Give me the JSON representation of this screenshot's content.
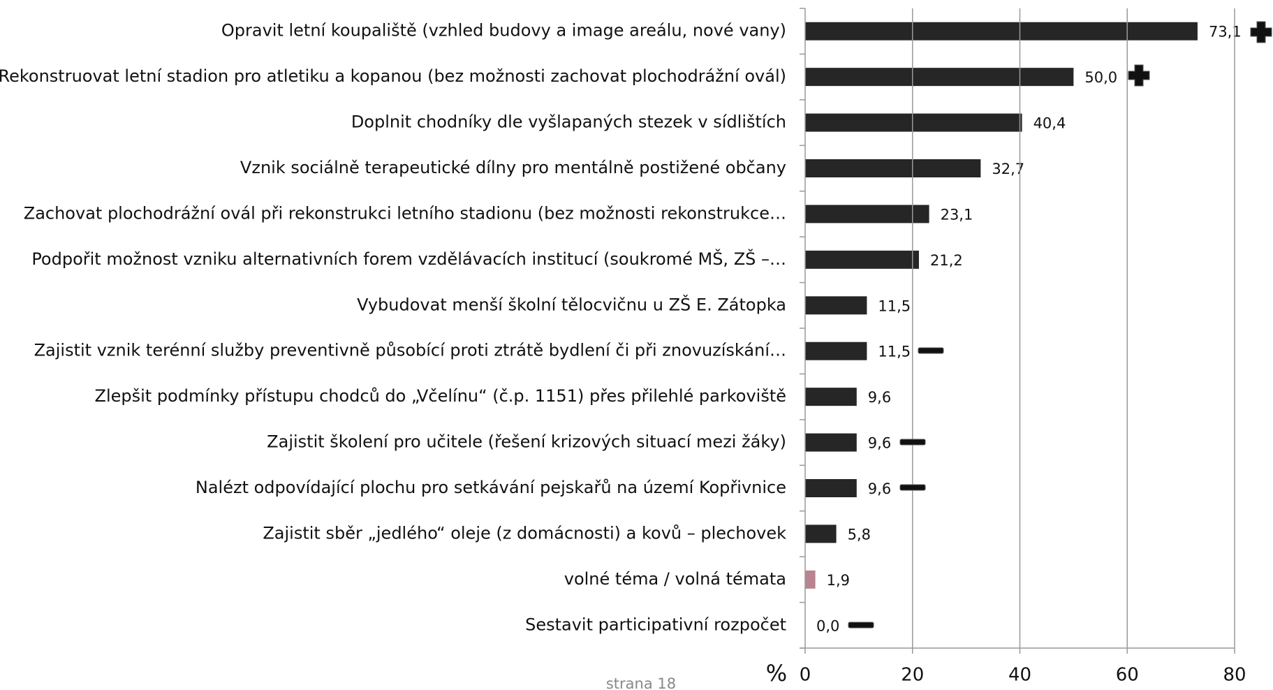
{
  "chart_data": {
    "type": "bar",
    "orientation": "horizontal",
    "categories": [
      "Opravit letní koupaliště (vzhled budovy a image areálu, nové vany)",
      "Rekonstruovat letní stadion pro atletiku a kopanou (bez možnosti zachovat plochodrážní ovál)",
      "Doplnit chodníky dle vyšlapaných stezek v sídlištích",
      "Vznik sociálně terapeutické dílny pro mentálně postižené občany",
      "Zachovat plochodrážní ovál při rekonstrukci letního stadionu (bez možnosti rekonstrukce…",
      "Podpořit možnost vzniku alternativních forem vzdělávacích institucí (soukromé MŠ, ZŠ –…",
      "Vybudovat menší školní tělocvičnu u ZŠ E. Zátopka",
      "Zajistit vznik terénní služby preventivně působící proti ztrátě bydlení či při znovuzískání…",
      "Zlepšit podmínky přístupu chodců do „Včelínu“ (č.p. 1151) přes přilehlé parkoviště",
      "Zajistit školení pro učitele (řešení krizových situací mezi žáky)",
      "Nalézt odpovídající plochu pro setkávání pejskařů na území Kopřivnice",
      "Zajistit sběr „jedlého“ oleje (z domácnosti) a kovů – plechovek",
      "volné téma / volná témata",
      "Sestavit participativní rozpočet"
    ],
    "values": [
      73.1,
      50.0,
      40.4,
      32.7,
      23.1,
      21.2,
      11.5,
      11.5,
      9.6,
      9.6,
      9.6,
      5.8,
      1.9,
      0.0
    ],
    "value_labels": [
      "73,1",
      "50,0",
      "40,4",
      "32,7",
      "23,1",
      "21,2",
      "11,5",
      "11,5",
      "9,6",
      "9,6",
      "9,6",
      "5,8",
      "1,9",
      "0,0"
    ],
    "colors": [
      "#262626",
      "#262626",
      "#262626",
      "#262626",
      "#262626",
      "#262626",
      "#262626",
      "#262626",
      "#262626",
      "#262626",
      "#262626",
      "#262626",
      "#b7848f",
      "#262626"
    ],
    "xlabel": "%",
    "xlim": [
      0,
      80
    ],
    "xticks": [
      0,
      20,
      40,
      60,
      80
    ],
    "grid": true,
    "footer": "strana 18"
  }
}
